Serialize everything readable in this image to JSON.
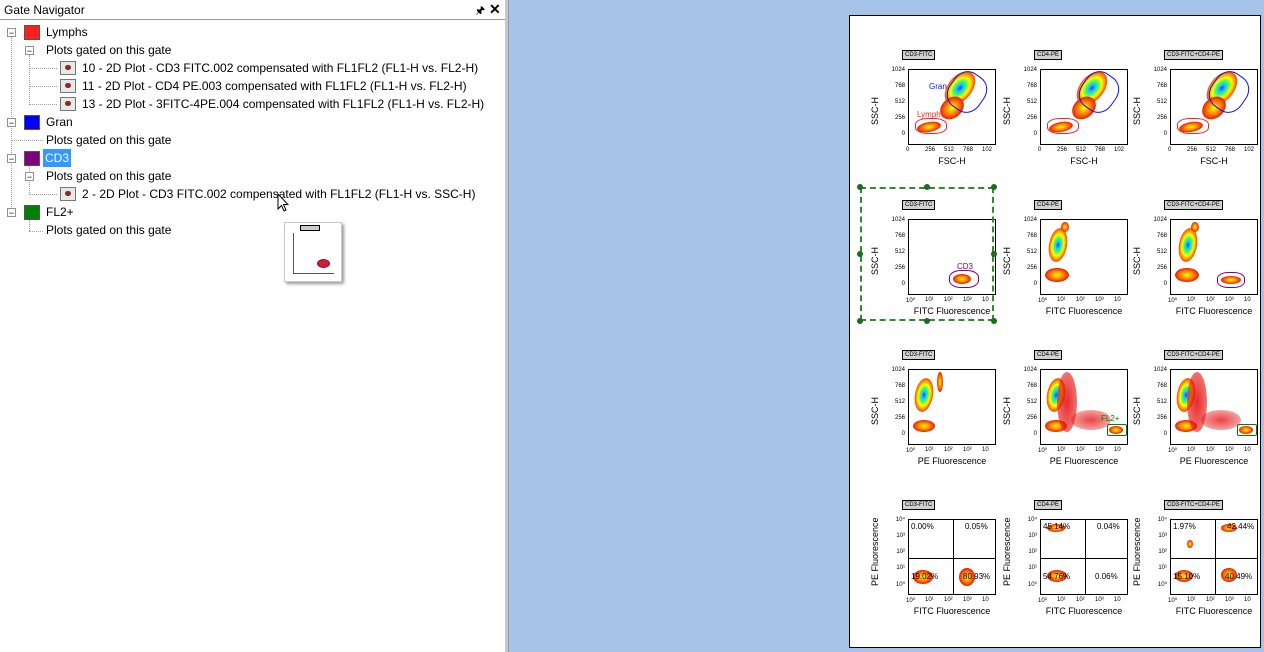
{
  "panel": {
    "title": "Gate Navigator",
    "pin_icon": "pin-icon",
    "close_icon": "close-icon"
  },
  "tree": {
    "lymphs": {
      "label": "Lymphs",
      "color": "#ff2020",
      "sub": "Plots gated on this gate",
      "plots": [
        "10 - 2D Plot - CD3 FITC.002 compensated with FL1FL2 (FL1-H vs. FL2-H)",
        "11 - 2D Plot - CD4 PE.003 compensated with FL1FL2 (FL1-H vs. FL2-H)",
        "13 - 2D Plot - 3FITC-4PE.004 compensated with FL1FL2 (FL1-H vs. FL2-H)"
      ]
    },
    "gran": {
      "label": "Gran",
      "color": "#0000ff",
      "sub": "Plots gated on this gate"
    },
    "cd3": {
      "label": "CD3",
      "color": "#800080",
      "sub": "Plots gated on this gate",
      "plots": [
        "2 - 2D Plot - CD3 FITC.002 compensated with FL1FL2 (FL1-H vs. SSC-H)"
      ]
    },
    "fl2": {
      "label": "FL2+",
      "color": "#008000",
      "sub": "Plots gated on this gate"
    }
  },
  "plot_titles": [
    "CD3-FITC",
    "CD4-PE",
    "CD3-FITC+CD4-PE"
  ],
  "axes": {
    "ssc": "SSC-H",
    "fsc": "FSC-H",
    "fitc": "FITC Fluorescence",
    "pe": "PE Fluorescence",
    "lin_ticks": [
      "0",
      "256",
      "512",
      "768",
      "102"
    ],
    "lin_yticks": [
      "1024",
      "768",
      "512",
      "256",
      "0"
    ],
    "log_ticks": [
      "10⁰",
      "10¹",
      "10²",
      "10³",
      "10"
    ],
    "log_yticks": [
      "10⁴",
      "10³",
      "10²",
      "10¹",
      "10⁰"
    ]
  },
  "gates": {
    "gran": "Gran",
    "lymphs": "Lymph",
    "cd3": "CD3",
    "fl2": "FL2+"
  },
  "quadrants": [
    {
      "ul": "0.00%",
      "ur": "0.05%",
      "ll": "19.02%",
      "lr": "80.93%"
    },
    {
      "ul": "45.14%",
      "ur": "0.04%",
      "ll": "54.76%",
      "lr": "0.06%"
    },
    {
      "ul": "1.97%",
      "ur": "42.44%",
      "ll": "15.10%",
      "lr": "40.49%"
    }
  ]
}
